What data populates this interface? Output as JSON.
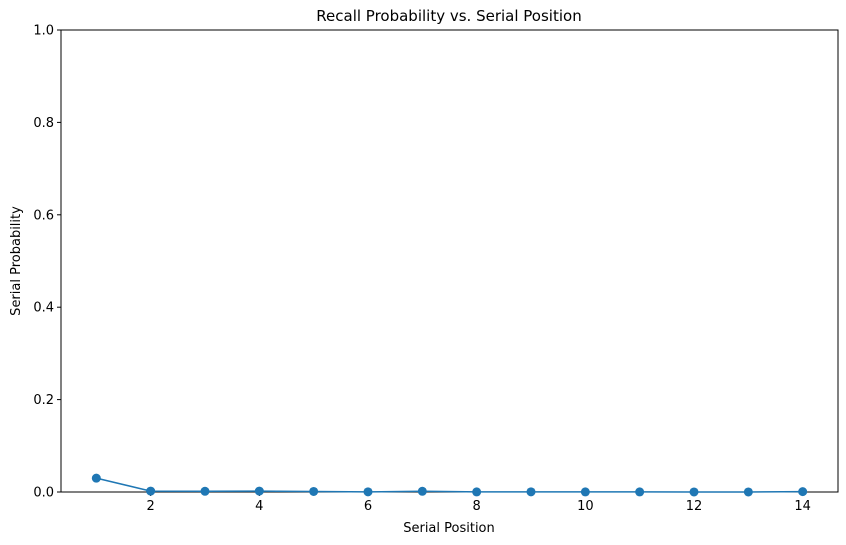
{
  "chart_data": {
    "type": "line",
    "title": "Recall Probability vs. Serial Position",
    "xlabel": "Serial Position",
    "ylabel": "Serial Probability",
    "x": [
      1,
      2,
      3,
      4,
      5,
      6,
      7,
      8,
      9,
      10,
      11,
      12,
      13,
      14
    ],
    "series": [
      {
        "values": [
          0.03,
          0.002,
          0.0015,
          0.002,
          0.0012,
          0.0003,
          0.0015,
          0.0002,
          0.0003,
          0.0002,
          0.0002,
          0.0001,
          0.0001,
          0.0008
        ],
        "color": "#1f77b4",
        "marker": "circle"
      }
    ],
    "xlim": [
      0.35,
      14.65
    ],
    "ylim": [
      0,
      1.0
    ],
    "xticks": [
      2,
      4,
      6,
      8,
      10,
      12,
      14
    ],
    "yticks": [
      0.0,
      0.2,
      0.4,
      0.6,
      0.8,
      1.0
    ],
    "ytick_labels": [
      "0.0",
      "0.2",
      "0.4",
      "0.6",
      "0.8",
      "1.0"
    ],
    "grid": false,
    "legend": "none"
  }
}
